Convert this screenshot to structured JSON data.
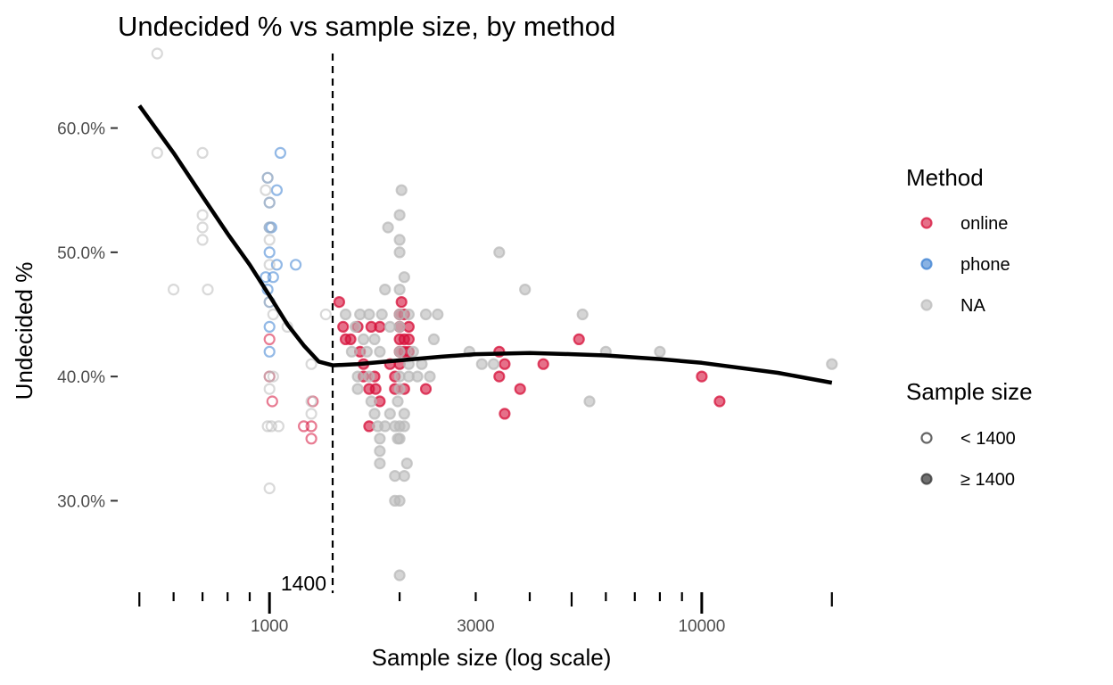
{
  "chart_data": {
    "type": "scatter",
    "title": "Undecided % vs sample size, by method",
    "xlabel": "Sample size (log scale)",
    "ylabel": "Undecided %",
    "x_scale": "log10",
    "xlim": [
      497,
      21500
    ],
    "ylim": [
      24,
      66
    ],
    "x_ticks": [
      {
        "value": 1000,
        "label": "1000"
      },
      {
        "value": 3000,
        "label": "3000"
      },
      {
        "value": 10000,
        "label": "10000"
      }
    ],
    "y_ticks": [
      {
        "value": 30,
        "label": "30.0%"
      },
      {
        "value": 40,
        "label": "40.0%"
      },
      {
        "value": 50,
        "label": "50.0%"
      },
      {
        "value": 60,
        "label": "60.0%"
      }
    ],
    "rug_ticks": [
      500,
      600,
      700,
      800,
      900,
      1000,
      2000,
      3000,
      4000,
      5000,
      6000,
      7000,
      8000,
      9000,
      10000,
      20000
    ],
    "rug_major": [
      1000,
      10000
    ],
    "reference_line": {
      "x": 1400,
      "label": "1400",
      "style": "dashed"
    },
    "grid": false,
    "legend_position": "right",
    "colors": {
      "online": "#d6103a",
      "phone": "#3a7fd1",
      "NA": "#b9b9b9",
      "trend": "#000000"
    },
    "legends": {
      "method": {
        "title": "Method",
        "items": [
          "online",
          "phone",
          "NA"
        ]
      },
      "size": {
        "title": "Sample size",
        "items": [
          "< 1400",
          "≥ 1400"
        ]
      }
    },
    "trend": {
      "x": [
        500,
        600,
        700,
        800,
        900,
        1000,
        1100,
        1200,
        1300,
        1400,
        1600,
        2000,
        2500,
        3000,
        4000,
        5000,
        6000,
        8000,
        10000,
        15000,
        20000
      ],
      "y": [
        61.8,
        58.0,
        54.5,
        51.5,
        49.0,
        46.5,
        44.2,
        42.5,
        41.2,
        40.9,
        41.0,
        41.3,
        41.6,
        41.8,
        41.9,
        41.8,
        41.7,
        41.4,
        41.1,
        40.3,
        39.5
      ]
    },
    "series": [
      {
        "name": "online",
        "points": [
          [
            1000,
            43
          ],
          [
            1000,
            40
          ],
          [
            1015,
            38
          ],
          [
            1200,
            36
          ],
          [
            1250,
            36
          ],
          [
            1250,
            35
          ],
          [
            1260,
            38
          ],
          [
            1450,
            46
          ],
          [
            1480,
            44
          ],
          [
            1500,
            43
          ],
          [
            1540,
            43
          ],
          [
            1600,
            44
          ],
          [
            1620,
            42
          ],
          [
            1650,
            41
          ],
          [
            1650,
            40
          ],
          [
            1700,
            39
          ],
          [
            1700,
            36
          ],
          [
            1720,
            44
          ],
          [
            1750,
            40
          ],
          [
            1760,
            39
          ],
          [
            1800,
            38
          ],
          [
            1800,
            44
          ],
          [
            1900,
            41
          ],
          [
            1950,
            40
          ],
          [
            1950,
            39
          ],
          [
            2000,
            45
          ],
          [
            2000,
            44
          ],
          [
            2000,
            43
          ],
          [
            2000,
            42
          ],
          [
            2000,
            41
          ],
          [
            2020,
            46
          ],
          [
            2050,
            45
          ],
          [
            2050,
            43
          ],
          [
            2050,
            42
          ],
          [
            2050,
            39
          ],
          [
            2100,
            44
          ],
          [
            2100,
            43
          ],
          [
            2100,
            42
          ],
          [
            2300,
            39
          ],
          [
            3400,
            42
          ],
          [
            3400,
            40
          ],
          [
            3500,
            41
          ],
          [
            3500,
            37
          ],
          [
            3800,
            39
          ],
          [
            4300,
            41
          ],
          [
            5200,
            43
          ],
          [
            10000,
            40
          ],
          [
            11000,
            38
          ]
        ]
      },
      {
        "name": "phone",
        "points": [
          [
            980,
            48
          ],
          [
            990,
            47
          ],
          [
            1000,
            46
          ],
          [
            1000,
            42
          ],
          [
            1000,
            44
          ],
          [
            1020,
            48
          ],
          [
            1040,
            49
          ],
          [
            1060,
            58
          ],
          [
            1000,
            50
          ],
          [
            1000,
            52
          ],
          [
            1010,
            52
          ],
          [
            1040,
            55
          ],
          [
            1150,
            49
          ],
          [
            990,
            56
          ],
          [
            1000,
            54
          ]
        ]
      },
      {
        "name": "NA",
        "points": [
          [
            550,
            66
          ],
          [
            550,
            58
          ],
          [
            700,
            58
          ],
          [
            700,
            53
          ],
          [
            700,
            52
          ],
          [
            700,
            51
          ],
          [
            600,
            47
          ],
          [
            720,
            47
          ],
          [
            980,
            55
          ],
          [
            990,
            56
          ],
          [
            1000,
            54
          ],
          [
            1000,
            52
          ],
          [
            1000,
            51
          ],
          [
            1000,
            49
          ],
          [
            1000,
            46
          ],
          [
            1000,
            40
          ],
          [
            1000,
            39
          ],
          [
            990,
            36
          ],
          [
            1010,
            36
          ],
          [
            1020,
            40
          ],
          [
            1020,
            45
          ],
          [
            1000,
            31
          ],
          [
            1050,
            36
          ],
          [
            1100,
            44
          ],
          [
            1250,
            41
          ],
          [
            1250,
            37
          ],
          [
            1250,
            38
          ],
          [
            1350,
            45
          ],
          [
            1500,
            45
          ],
          [
            1550,
            42
          ],
          [
            1580,
            44
          ],
          [
            1600,
            40
          ],
          [
            1600,
            39
          ],
          [
            1620,
            45
          ],
          [
            1650,
            43
          ],
          [
            1680,
            42
          ],
          [
            1700,
            45
          ],
          [
            1700,
            40
          ],
          [
            1720,
            38
          ],
          [
            1750,
            43
          ],
          [
            1750,
            37
          ],
          [
            1780,
            36
          ],
          [
            1800,
            35
          ],
          [
            1800,
            34
          ],
          [
            1800,
            33
          ],
          [
            1800,
            42
          ],
          [
            1820,
            45
          ],
          [
            1850,
            36
          ],
          [
            1850,
            47
          ],
          [
            1880,
            52
          ],
          [
            1900,
            37
          ],
          [
            1900,
            44
          ],
          [
            1950,
            36
          ],
          [
            1950,
            30
          ],
          [
            1950,
            32
          ],
          [
            1980,
            38
          ],
          [
            1980,
            35
          ],
          [
            2000,
            53
          ],
          [
            2000,
            51
          ],
          [
            2000,
            50
          ],
          [
            2000,
            47
          ],
          [
            2000,
            45
          ],
          [
            2000,
            44
          ],
          [
            2000,
            42
          ],
          [
            2000,
            40
          ],
          [
            2000,
            39
          ],
          [
            2000,
            36
          ],
          [
            2000,
            35
          ],
          [
            2000,
            30
          ],
          [
            2000,
            24
          ],
          [
            2020,
            55
          ],
          [
            2050,
            48
          ],
          [
            2050,
            37
          ],
          [
            2050,
            36
          ],
          [
            2050,
            32
          ],
          [
            2080,
            33
          ],
          [
            2100,
            45
          ],
          [
            2100,
            41
          ],
          [
            2100,
            40
          ],
          [
            2150,
            42
          ],
          [
            2200,
            40
          ],
          [
            2250,
            41
          ],
          [
            2300,
            45
          ],
          [
            2350,
            40
          ],
          [
            2400,
            43
          ],
          [
            2450,
            45
          ],
          [
            2900,
            42
          ],
          [
            3300,
            41
          ],
          [
            3100,
            41
          ],
          [
            3400,
            50
          ],
          [
            3900,
            47
          ],
          [
            5300,
            45
          ],
          [
            5500,
            38
          ],
          [
            6000,
            42
          ],
          [
            8000,
            42
          ],
          [
            20000,
            41
          ]
        ]
      }
    ]
  }
}
